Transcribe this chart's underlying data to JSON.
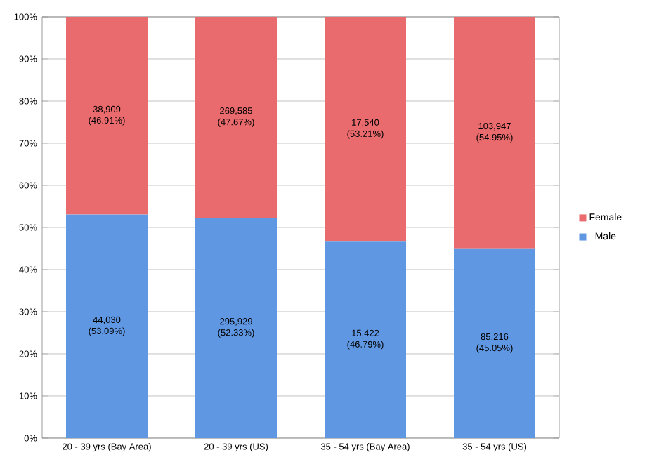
{
  "chart_data": {
    "type": "bar",
    "stacked": true,
    "categories": [
      "20 - 39 yrs (Bay Area)",
      "20 - 39 yrs (US)",
      "35 - 54 yrs (Bay Area)",
      "35 - 54 yrs (US)"
    ],
    "series": [
      {
        "name": "Male",
        "color": "#5f97e3",
        "values": [
          53.09,
          52.33,
          46.79,
          45.05
        ],
        "value_labels": [
          "44,030 (53.09%)",
          "295,929 (52.33%)",
          "15,422 (46.79%)",
          "85,216 (45.05%)"
        ]
      },
      {
        "name": "Female",
        "color": "#ea6b6d",
        "values": [
          46.91,
          47.67,
          53.21,
          54.95
        ],
        "value_labels": [
          "38,909 (46.91%)",
          "269,585 (47.67%)",
          "17,540 (53.21%)",
          "103,947 (54.95%)"
        ]
      }
    ],
    "ylim": [
      0,
      100
    ],
    "yticks": [
      {
        "value": 0,
        "label": "0%"
      },
      {
        "value": 10,
        "label": "10%"
      },
      {
        "value": 20,
        "label": "20%"
      },
      {
        "value": 30,
        "label": "30%"
      },
      {
        "value": 40,
        "label": "40%"
      },
      {
        "value": 50,
        "label": "50%"
      },
      {
        "value": 60,
        "label": "60%"
      },
      {
        "value": 70,
        "label": "70%"
      },
      {
        "value": 80,
        "label": "80%"
      },
      {
        "value": 90,
        "label": "90%"
      },
      {
        "value": 100,
        "label": "100%"
      }
    ],
    "grid": "y",
    "legend": "right"
  }
}
